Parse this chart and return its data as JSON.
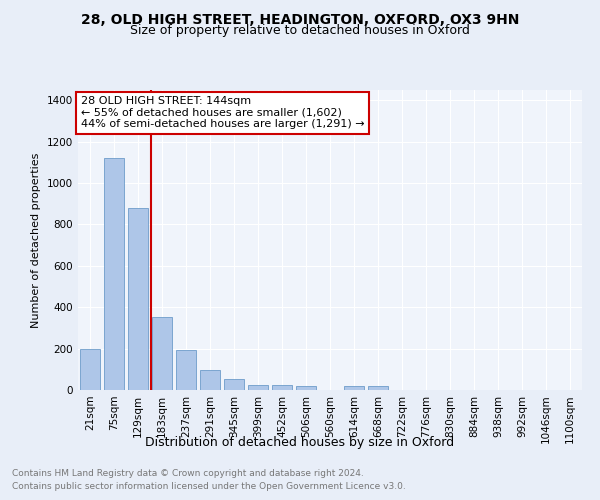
{
  "title1": "28, OLD HIGH STREET, HEADINGTON, OXFORD, OX3 9HN",
  "title2": "Size of property relative to detached houses in Oxford",
  "xlabel": "Distribution of detached houses by size in Oxford",
  "ylabel": "Number of detached properties",
  "footer1": "Contains HM Land Registry data © Crown copyright and database right 2024.",
  "footer2": "Contains public sector information licensed under the Open Government Licence v3.0.",
  "categories": [
    "21sqm",
    "75sqm",
    "129sqm",
    "183sqm",
    "237sqm",
    "291sqm",
    "345sqm",
    "399sqm",
    "452sqm",
    "506sqm",
    "560sqm",
    "614sqm",
    "668sqm",
    "722sqm",
    "776sqm",
    "830sqm",
    "884sqm",
    "938sqm",
    "992sqm",
    "1046sqm",
    "1100sqm"
  ],
  "values": [
    197,
    1120,
    880,
    353,
    194,
    97,
    55,
    25,
    22,
    18,
    0,
    18,
    18,
    0,
    0,
    0,
    0,
    0,
    0,
    0,
    0
  ],
  "bar_color": "#aec6e8",
  "bar_edge_color": "#5a8fc2",
  "vline_x": 2.55,
  "vline_color": "#cc0000",
  "annotation_text": "28 OLD HIGH STREET: 144sqm\n← 55% of detached houses are smaller (1,602)\n44% of semi-detached houses are larger (1,291) →",
  "annotation_box_color": "#ffffff",
  "annotation_box_edge": "#cc0000",
  "ylim": [
    0,
    1450
  ],
  "yticks": [
    0,
    200,
    400,
    600,
    800,
    1000,
    1200,
    1400
  ],
  "bg_color": "#e8eef8",
  "plot_bg_color": "#f0f4fb",
  "grid_color": "#ffffff",
  "title1_fontsize": 10,
  "title2_fontsize": 9,
  "xlabel_fontsize": 9,
  "ylabel_fontsize": 8,
  "tick_fontsize": 7.5,
  "footer_fontsize": 6.5,
  "annotation_fontsize": 8
}
